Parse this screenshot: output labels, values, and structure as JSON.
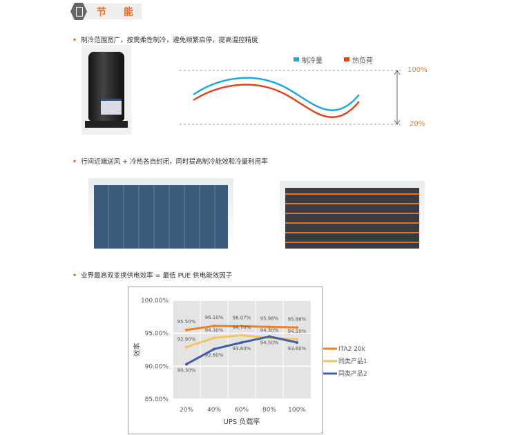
{
  "header": {
    "title": "节 能",
    "icon": "battery-icon"
  },
  "section1": {
    "bullet": "制冷范围宽广，按需柔性制冷，避免频繁启停，提高温控精度",
    "legend": [
      {
        "label": "制冷量",
        "color": "#1ea8e0"
      },
      {
        "label": "热负荷",
        "color": "#e8401c"
      }
    ],
    "top_label": "100%",
    "bottom_label": "20%"
  },
  "section2": {
    "bullet": "行间近端送风 + 冷热各自封闭，同时提高制冷能效和冷量利用率"
  },
  "section3": {
    "bullet": "业界最高双变换供电效率 = 最低 PUE 供电能效因子"
  },
  "chart_data": {
    "type": "line",
    "categories": [
      "20%",
      "40%",
      "60%",
      "80%",
      "100%"
    ],
    "xlabel": "UPS 负载率",
    "ylabel": "效率",
    "ylim": [
      85,
      100
    ],
    "yticks": [
      "85.00%",
      "90.00%",
      "95.00%",
      "100.00%"
    ],
    "grid": true,
    "legend": "right",
    "series": [
      {
        "name": "ITA2 20k",
        "color": "#f07f21",
        "values": [
          95.5,
          96.1,
          96.07,
          95.98,
          95.88
        ],
        "labels": [
          "95.50%",
          "96.10%",
          "96.07%",
          "95.98%",
          "95.88%"
        ]
      },
      {
        "name": "同类产品1",
        "color": "#f7c45a",
        "values": [
          92.9,
          94.3,
          94.7,
          94.3,
          94.1
        ],
        "labels": [
          "92.90%",
          "94.30%",
          "94.70%",
          "94.30%",
          "94.10%"
        ]
      },
      {
        "name": "同类产品2",
        "color": "#3d5fa8",
        "values": [
          90.3,
          92.6,
          93.6,
          94.5,
          93.6
        ],
        "labels": [
          "90.30%",
          "92.60%",
          "93.60%",
          "94.50%",
          "93.60%"
        ]
      }
    ]
  }
}
